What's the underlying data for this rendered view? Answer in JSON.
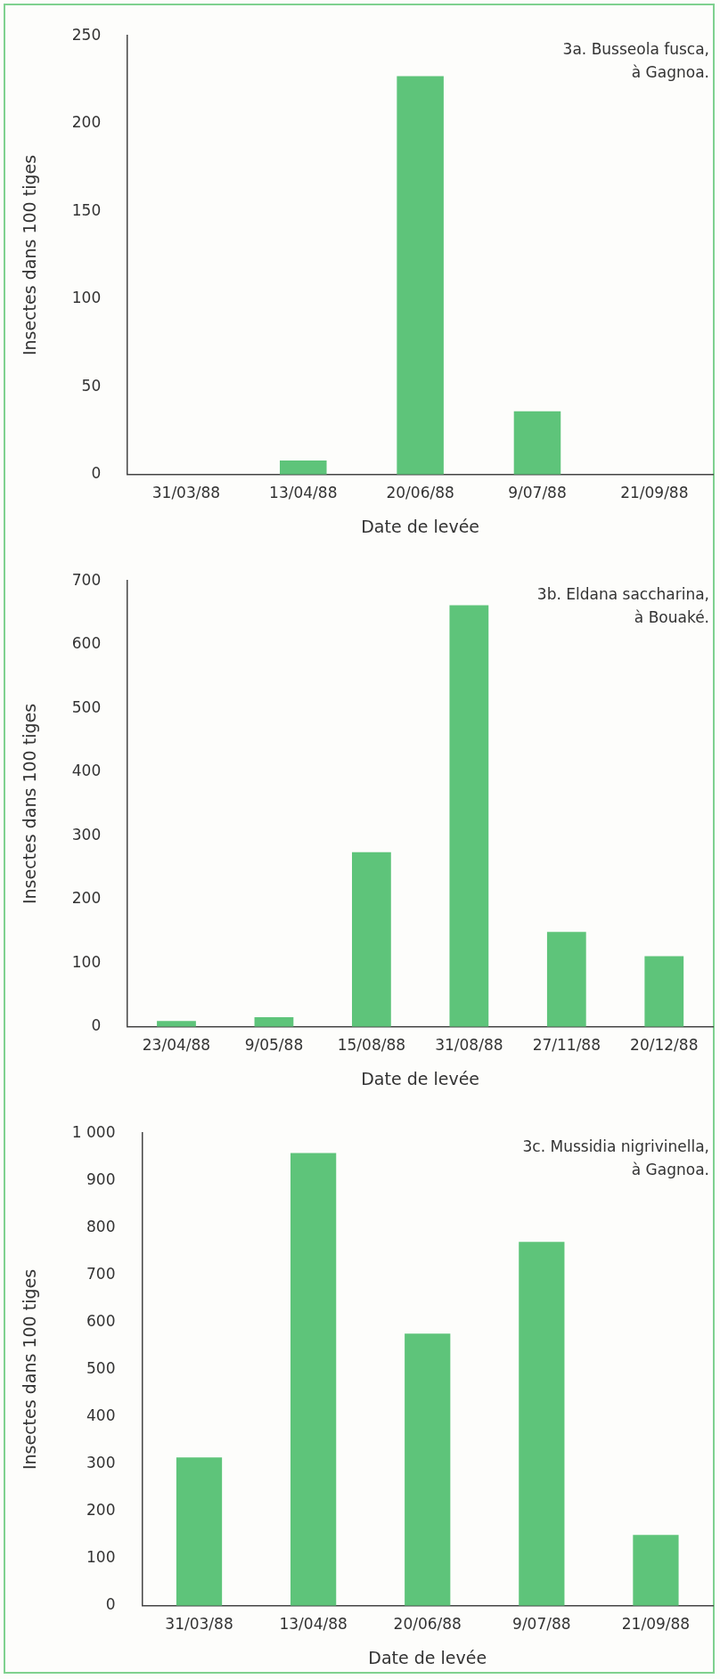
{
  "chart_data": [
    {
      "type": "bar",
      "title": "3a. Busseola fusca, à Gagnoa.",
      "xlabel": "Date de levée",
      "ylabel": "Insectes dans 100 tiges",
      "categories": [
        "31/03/88",
        "13/04/88",
        "20/06/88",
        "9/07/88",
        "21/09/88"
      ],
      "values": [
        0,
        8,
        227,
        36,
        0
      ],
      "color": "#5ec47a",
      "ylim": [
        0,
        250
      ],
      "yticks": [
        0,
        50,
        100,
        150,
        200,
        250
      ],
      "grid": false,
      "legend": false
    },
    {
      "type": "bar",
      "title": "3b. Eldana saccharina, à Bouaké.",
      "xlabel": "Date de levée",
      "ylabel": "Insectes dans 100 tiges",
      "categories": [
        "23/04/88",
        "9/05/88",
        "15/08/88",
        "31/08/88",
        "27/11/88",
        "20/12/88"
      ],
      "values": [
        9,
        15,
        274,
        662,
        149,
        111
      ],
      "color": "#5ec47a",
      "ylim": [
        0,
        700
      ],
      "yticks": [
        0,
        100,
        200,
        300,
        400,
        500,
        600,
        700
      ],
      "grid": false,
      "legend": false
    },
    {
      "type": "bar",
      "title": "3c. Mussidia nigrivinella, à Gagnoa.",
      "xlabel": "Date de levée",
      "ylabel": "Insectes dans 100 tiges",
      "categories": [
        "31/03/88",
        "13/04/88",
        "20/06/88",
        "9/07/88",
        "21/09/88"
      ],
      "values": [
        314,
        958,
        576,
        770,
        150
      ],
      "color": "#5ec47a",
      "ylim": [
        0,
        1000
      ],
      "yticks": [
        0,
        100,
        200,
        300,
        400,
        500,
        600,
        700,
        800,
        900,
        {
          "value": 1000,
          "label": "1 000"
        }
      ],
      "grid": false,
      "legend": false
    }
  ]
}
